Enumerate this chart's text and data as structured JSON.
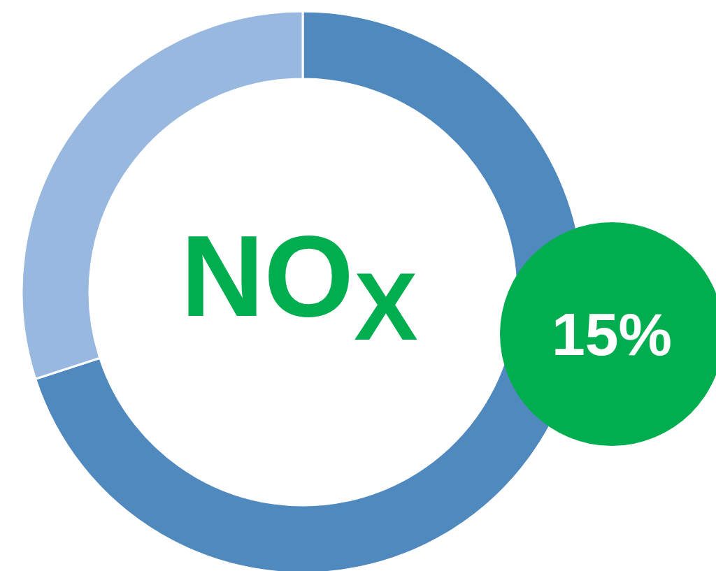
{
  "chart_data": {
    "type": "donut",
    "title": "NO$_{X}$",
    "categories": [
      null,
      null
    ],
    "values": [
      70,
      30
    ],
    "colors": [
      "#5089bd",
      "#98b8df"
    ],
    "annotations": [
      "15%"
    ]
  }
}
